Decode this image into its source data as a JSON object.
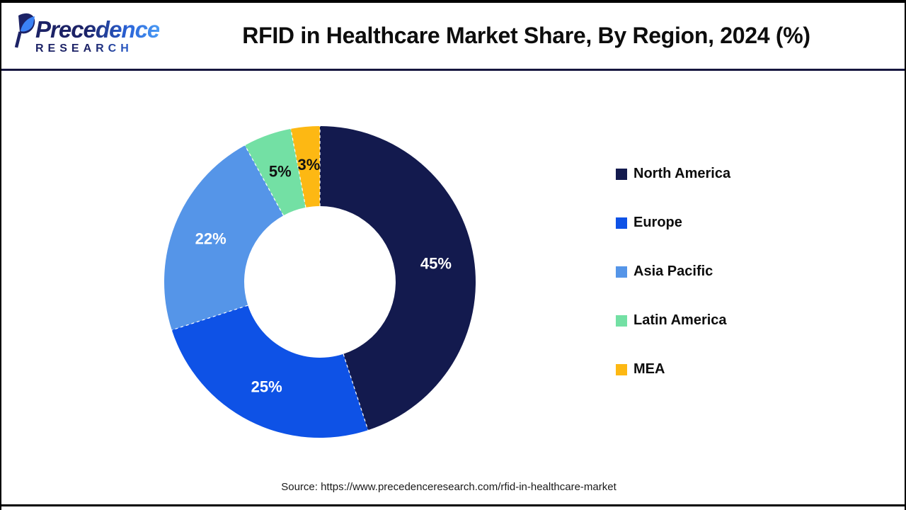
{
  "header": {
    "logo": {
      "line1": "Precedence",
      "line2": "RESEARCH"
    },
    "title": "RFID in Healthcare Market Share, By Region, 2024 (%)"
  },
  "chart_data": {
    "type": "pie",
    "subtype": "donut",
    "title": "RFID in Healthcare Market Share, By Region, 2024 (%)",
    "unit": "%",
    "categories": [
      "North America",
      "Europe",
      "Asia Pacific",
      "Latin America",
      "MEA"
    ],
    "values": [
      45,
      25,
      22,
      5,
      3
    ],
    "labels": [
      "45%",
      "25%",
      "22%",
      "5%",
      "3%"
    ],
    "colors": [
      "#131a4e",
      "#0e52e6",
      "#5595e8",
      "#73e0a4",
      "#fdb813"
    ],
    "label_colors": [
      "#ffffff",
      "#ffffff",
      "#ffffff",
      "#111111",
      "#111111"
    ],
    "start_angle_deg": 0,
    "direction": "clockwise",
    "legend_position": "right",
    "hole_color": "#ffffff"
  },
  "source": {
    "text": "Source: https://www.precedenceresearch.com/rfid-in-healthcare-market"
  }
}
